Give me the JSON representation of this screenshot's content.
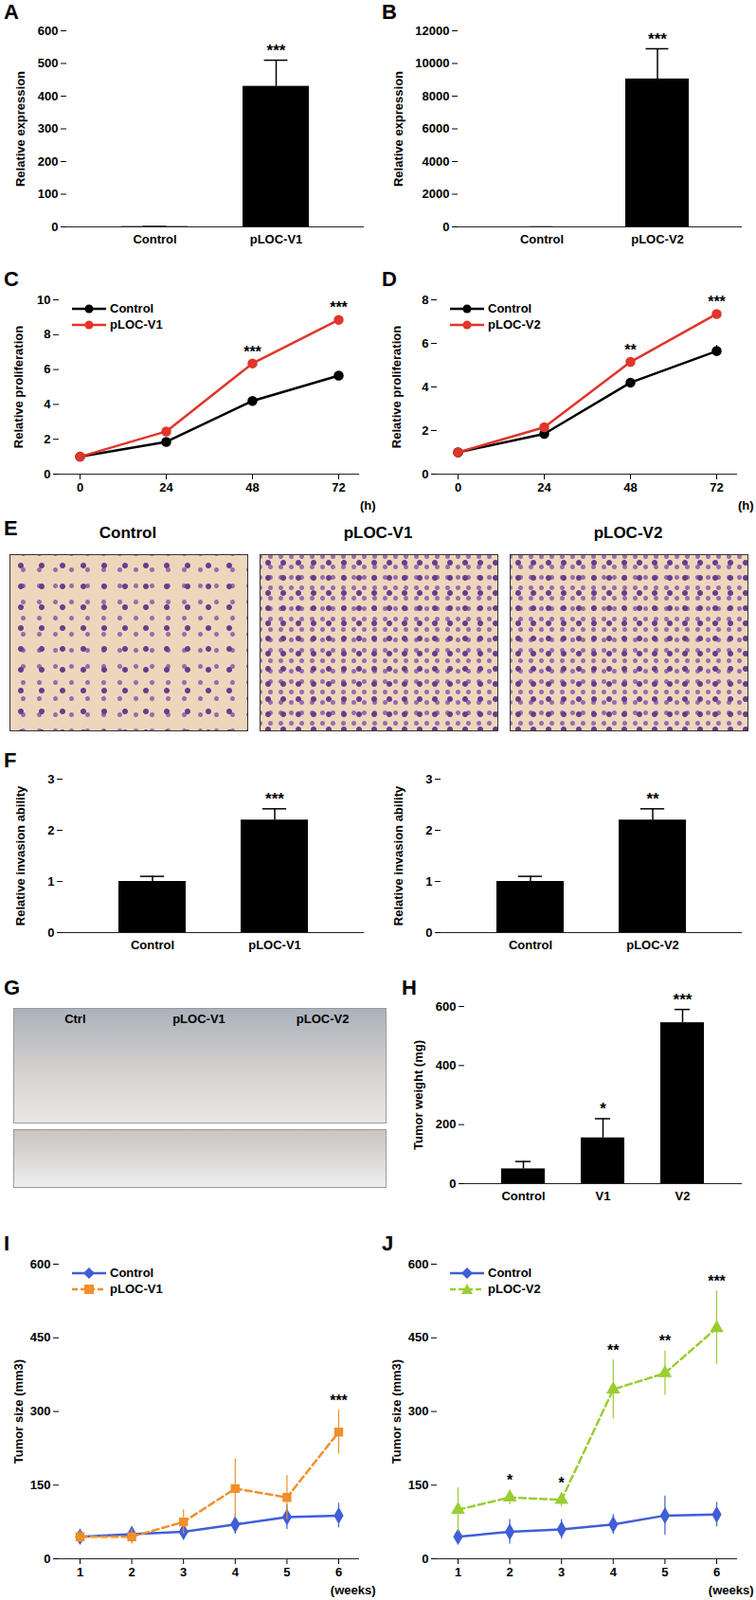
{
  "chart_data": [
    {
      "panel": "A",
      "type": "bar",
      "categories": [
        "Control",
        "pLOC-V1"
      ],
      "values": [
        1,
        430
      ],
      "errors": [
        0,
        80
      ],
      "significance": [
        null,
        "***"
      ],
      "color": "#000000",
      "ylabel": "Relative expression",
      "ylim": [
        0,
        600
      ],
      "yticks": [
        0,
        100,
        200,
        300,
        400,
        500,
        600
      ]
    },
    {
      "panel": "B",
      "type": "bar",
      "categories": [
        "Control",
        "pLOC-V2"
      ],
      "values": [
        1,
        9050
      ],
      "errors": [
        0,
        1850
      ],
      "significance": [
        null,
        "***"
      ],
      "color": "#000000",
      "ylabel": "Relative expression",
      "ylim": [
        0,
        12000
      ],
      "yticks": [
        0,
        2000,
        4000,
        6000,
        8000,
        10000,
        12000
      ]
    },
    {
      "panel": "C",
      "type": "line",
      "x": [
        0,
        24,
        48,
        72
      ],
      "xlabel": "(h)",
      "xlim": [
        0,
        72
      ],
      "xticks": [
        0,
        24,
        48,
        72
      ],
      "ylabel": "Relative proliferation",
      "ylim": [
        0,
        10
      ],
      "yticks": [
        0,
        2,
        4,
        6,
        8,
        10
      ],
      "legend": "top-left",
      "significance": [
        null,
        null,
        "***",
        "***"
      ],
      "series": [
        {
          "name": "Control",
          "color": "#000000",
          "marker": "circle",
          "line_style": "solid",
          "values": [
            1,
            1.85,
            4.2,
            5.65
          ],
          "errors": [
            0.03,
            0.05,
            0.08,
            0.2
          ]
        },
        {
          "name": "pLOC-V1",
          "color": "#e0352b",
          "marker": "circle",
          "line_style": "solid",
          "values": [
            1,
            2.45,
            6.35,
            8.85
          ],
          "errors": [
            0.03,
            0.05,
            0.1,
            0.15
          ]
        }
      ]
    },
    {
      "panel": "D",
      "type": "line",
      "x": [
        0,
        24,
        48,
        72
      ],
      "xlabel": "(h)",
      "xlim": [
        0,
        72
      ],
      "xticks": [
        0,
        24,
        48,
        72
      ],
      "ylabel": "Relative proliferation",
      "ylim": [
        0,
        8
      ],
      "yticks": [
        0,
        2,
        4,
        6,
        8
      ],
      "legend": "top-left",
      "significance": [
        null,
        null,
        "**",
        "***"
      ],
      "series": [
        {
          "name": "Control",
          "color": "#000000",
          "marker": "circle",
          "line_style": "solid",
          "values": [
            1,
            1.85,
            4.2,
            5.65
          ],
          "errors": [
            0.03,
            0.05,
            0.08,
            0.25
          ]
        },
        {
          "name": "pLOC-V2",
          "color": "#e0352b",
          "marker": "circle",
          "line_style": "solid",
          "values": [
            1,
            2.15,
            5.15,
            7.35
          ],
          "errors": [
            0.03,
            0.05,
            0.08,
            0.1
          ]
        }
      ]
    },
    {
      "panel": "E",
      "type": "image",
      "labels": [
        "Control",
        "pLOC-V1",
        "pLOC-V2"
      ]
    },
    {
      "panel": "F",
      "type": "bar",
      "categories": [
        "Control",
        "pLOC-V1"
      ],
      "values": [
        1,
        2.2
      ],
      "errors": [
        0.1,
        0.22
      ],
      "significance": [
        null,
        "***"
      ],
      "color": "#000000",
      "ylabel": "Relative invasion ability",
      "ylim": [
        0,
        3
      ],
      "yticks": [
        0,
        1,
        2,
        3
      ]
    },
    {
      "type": "bar",
      "categories": [
        "Control",
        "pLOC-V2"
      ],
      "values": [
        1,
        2.2
      ],
      "errors": [
        0.1,
        0.22
      ],
      "significance": [
        null,
        "**"
      ],
      "color": "#000000",
      "ylabel": "Relative invasion ability",
      "ylim": [
        0,
        3
      ],
      "yticks": [
        0,
        1,
        2,
        3
      ]
    },
    {
      "panel": "G",
      "type": "image",
      "labels": [
        "Ctrl",
        "pLOC-V1",
        "pLOC-V2"
      ]
    },
    {
      "panel": "H",
      "type": "bar",
      "categories": [
        "Control",
        "V1",
        "V2"
      ],
      "values": [
        50,
        155,
        545
      ],
      "errors": [
        25,
        65,
        45
      ],
      "significance": [
        null,
        "*",
        "***"
      ],
      "color": "#000000",
      "ylabel": "Tumor weight (mg)",
      "ylim": [
        0,
        600
      ],
      "yticks": [
        0,
        200,
        400,
        600
      ]
    },
    {
      "panel": "I",
      "type": "line",
      "x": [
        1,
        2,
        3,
        4,
        5,
        6
      ],
      "xlabel": "(weeks)",
      "xlim": [
        1,
        6
      ],
      "xticks": [
        1,
        2,
        3,
        4,
        5,
        6
      ],
      "ylabel": "Tumor size (mm3)",
      "ylim": [
        0,
        600
      ],
      "yticks": [
        0,
        150,
        300,
        450,
        600
      ],
      "legend": "top-left",
      "significance": [
        null,
        null,
        null,
        null,
        null,
        "***"
      ],
      "series": [
        {
          "name": "Control",
          "color": "#3f5fd8",
          "marker": "diamond",
          "line_style": "solid",
          "values": [
            45,
            50,
            55,
            70,
            85,
            88
          ],
          "errors": [
            10,
            15,
            15,
            20,
            25,
            25
          ]
        },
        {
          "name": "pLOC-V1",
          "color": "#f0902a",
          "marker": "square",
          "line_style": "dashed",
          "values": [
            45,
            45,
            75,
            143,
            125,
            258
          ],
          "errors": [
            12,
            15,
            25,
            60,
            45,
            45
          ]
        }
      ]
    },
    {
      "panel": "J",
      "type": "line",
      "x": [
        1,
        2,
        3,
        4,
        5,
        6
      ],
      "xlabel": "(weeks)",
      "xlim": [
        1,
        6
      ],
      "xticks": [
        1,
        2,
        3,
        4,
        5,
        6
      ],
      "ylabel": "Tumor size (mm3)",
      "ylim": [
        0,
        600
      ],
      "yticks": [
        0,
        150,
        300,
        450,
        600
      ],
      "legend": "top-left",
      "significance": [
        null,
        "*",
        "*",
        "**",
        "**",
        "***"
      ],
      "series": [
        {
          "name": "Control",
          "color": "#3f5fd8",
          "marker": "diamond",
          "line_style": "solid",
          "values": [
            45,
            55,
            60,
            70,
            88,
            90
          ],
          "errors": [
            15,
            25,
            20,
            20,
            40,
            25
          ]
        },
        {
          "name": "pLOC-V2",
          "color": "#9acd32",
          "marker": "triangle",
          "line_style": "dashed",
          "values": [
            100,
            125,
            120,
            345,
            378,
            470
          ],
          "errors": [
            45,
            15,
            15,
            60,
            45,
            75
          ]
        }
      ]
    }
  ]
}
